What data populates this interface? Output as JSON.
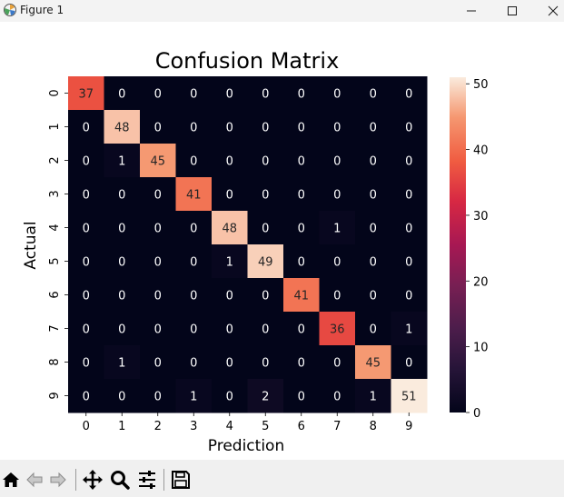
{
  "window": {
    "title": "Figure 1",
    "icons": [
      "matplotlib-icon",
      "minimize-icon",
      "maximize-icon",
      "close-icon"
    ]
  },
  "toolbar": {
    "buttons": [
      "home-icon",
      "back-icon",
      "forward-icon",
      "pan-icon",
      "zoom-icon",
      "configure-subplots-icon",
      "save-icon"
    ]
  },
  "chart_data": {
    "type": "heatmap",
    "title": "Confusion Matrix",
    "xlabel": "Prediction",
    "ylabel": "Actual",
    "x_tick_labels": [
      "0",
      "1",
      "2",
      "3",
      "4",
      "5",
      "6",
      "7",
      "8",
      "9"
    ],
    "y_tick_labels": [
      "0",
      "1",
      "2",
      "3",
      "4",
      "5",
      "6",
      "7",
      "8",
      "9"
    ],
    "matrix": [
      [
        37,
        0,
        0,
        0,
        0,
        0,
        0,
        0,
        0,
        0
      ],
      [
        0,
        48,
        0,
        0,
        0,
        0,
        0,
        0,
        0,
        0
      ],
      [
        0,
        1,
        45,
        0,
        0,
        0,
        0,
        0,
        0,
        0
      ],
      [
        0,
        0,
        0,
        41,
        0,
        0,
        0,
        0,
        0,
        0
      ],
      [
        0,
        0,
        0,
        0,
        48,
        0,
        0,
        1,
        0,
        0
      ],
      [
        0,
        0,
        0,
        0,
        1,
        49,
        0,
        0,
        0,
        0
      ],
      [
        0,
        0,
        0,
        0,
        0,
        0,
        41,
        0,
        0,
        0
      ],
      [
        0,
        0,
        0,
        0,
        0,
        0,
        0,
        36,
        0,
        1
      ],
      [
        0,
        1,
        0,
        0,
        0,
        0,
        0,
        0,
        45,
        0
      ],
      [
        0,
        0,
        0,
        1,
        0,
        2,
        0,
        0,
        1,
        51
      ]
    ],
    "colorbar": {
      "vmin": 0,
      "vmax": 51,
      "ticks": [
        0,
        10,
        20,
        30,
        40,
        50
      ],
      "colormap": "rocket"
    },
    "annotation_dark_color": "#262626",
    "annotation_light_color": "#ffffff"
  }
}
